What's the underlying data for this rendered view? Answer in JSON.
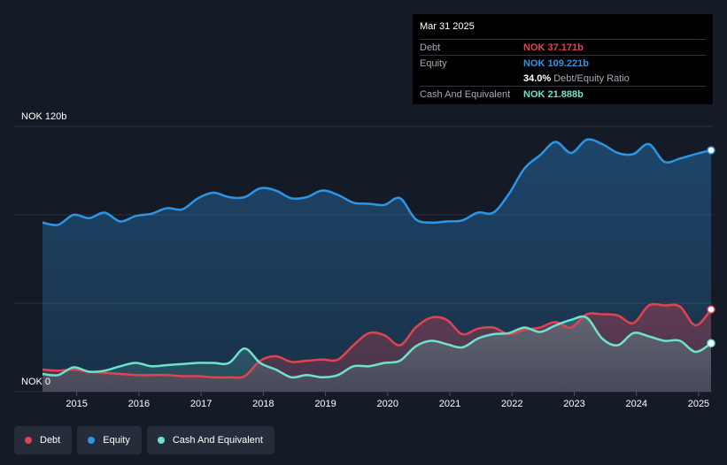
{
  "tooltip": {
    "date": "Mar 31 2025",
    "debt_label": "Debt",
    "debt_value": "NOK 37.171b",
    "equity_label": "Equity",
    "equity_value": "NOK 109.221b",
    "ratio_value": "34.0%",
    "ratio_label": "Debt/Equity Ratio",
    "cash_label": "Cash And Equivalent",
    "cash_value": "NOK 21.888b"
  },
  "colors": {
    "debt": "#e2434f",
    "equity": "#2e94e6",
    "cash": "#6fe2cd",
    "background": "#151b26"
  },
  "legend": [
    {
      "label": "Debt",
      "color": "#e2434f"
    },
    {
      "label": "Equity",
      "color": "#2e94e6"
    },
    {
      "label": "Cash And Equivalent",
      "color": "#6fe2cd"
    }
  ],
  "chart_data": {
    "type": "area",
    "title": "",
    "ylabel": "",
    "xlabel": "",
    "ylim": [
      0,
      120
    ],
    "y_top_label": "NOK 120b",
    "y_bottom_label": "NOK 0",
    "x_ticks": [
      "2015",
      "2016",
      "2017",
      "2018",
      "2019",
      "2020",
      "2021",
      "2022",
      "2023",
      "2024",
      "2025"
    ],
    "x_tick_values": [
      2015,
      2016,
      2017,
      2018,
      2019,
      2020,
      2021,
      2022,
      2023,
      2024,
      2025
    ],
    "xlim": [
      2014.45,
      2025.2
    ],
    "series": [
      {
        "name": "Equity",
        "x": [
          2014.45,
          2014.7,
          2014.95,
          2015.2,
          2015.45,
          2015.7,
          2015.95,
          2016.2,
          2016.45,
          2016.7,
          2016.95,
          2017.2,
          2017.45,
          2017.7,
          2017.95,
          2018.2,
          2018.45,
          2018.7,
          2018.95,
          2019.2,
          2019.45,
          2019.7,
          2019.95,
          2020.2,
          2020.45,
          2020.7,
          2020.95,
          2021.2,
          2021.45,
          2021.7,
          2021.95,
          2022.2,
          2022.45,
          2022.7,
          2022.95,
          2023.2,
          2023.45,
          2023.7,
          2023.95,
          2024.2,
          2024.45,
          2024.7,
          2024.95,
          2025.2
        ],
        "values": [
          76.5,
          75.5,
          80,
          78.5,
          81,
          77,
          79.5,
          80.5,
          83,
          82.5,
          87.5,
          90,
          88,
          88,
          92,
          91,
          87.5,
          88,
          91,
          89,
          85.5,
          85,
          84.5,
          87.5,
          78,
          76.5,
          77,
          77.5,
          81,
          81,
          89.5,
          101,
          107,
          113,
          108,
          114,
          112,
          108,
          107.5,
          112,
          104,
          105.5,
          107.5,
          109.221
        ]
      },
      {
        "name": "Debt",
        "x": [
          2014.45,
          2014.7,
          2014.95,
          2015.2,
          2015.45,
          2015.7,
          2015.95,
          2016.2,
          2016.45,
          2016.7,
          2016.95,
          2017.2,
          2017.45,
          2017.7,
          2017.95,
          2018.2,
          2018.45,
          2018.7,
          2018.95,
          2019.2,
          2019.45,
          2019.7,
          2019.95,
          2020.2,
          2020.45,
          2020.7,
          2020.95,
          2021.2,
          2021.45,
          2021.7,
          2021.95,
          2022.2,
          2022.45,
          2022.7,
          2022.95,
          2023.2,
          2023.45,
          2023.7,
          2023.95,
          2024.2,
          2024.45,
          2024.7,
          2024.95,
          2025.2
        ],
        "values": [
          10,
          9.5,
          10,
          9,
          8.5,
          8,
          7.5,
          7.5,
          7.5,
          7,
          7,
          6.5,
          6.5,
          7,
          14,
          16,
          13.5,
          14,
          14.5,
          14.5,
          21,
          26.5,
          25.5,
          21,
          29,
          33.5,
          32.5,
          26,
          28.5,
          29,
          26,
          28,
          29,
          31.5,
          29,
          35,
          35,
          34.5,
          31,
          39,
          39,
          38.5,
          30,
          37.171
        ]
      },
      {
        "name": "Cash And Equivalent",
        "x": [
          2014.45,
          2014.7,
          2014.95,
          2015.2,
          2015.45,
          2015.7,
          2015.95,
          2016.2,
          2016.45,
          2016.7,
          2016.95,
          2017.2,
          2017.45,
          2017.7,
          2017.95,
          2018.2,
          2018.45,
          2018.7,
          2018.95,
          2019.2,
          2019.45,
          2019.7,
          2019.95,
          2020.2,
          2020.45,
          2020.7,
          2020.95,
          2021.2,
          2021.45,
          2021.7,
          2021.95,
          2022.2,
          2022.45,
          2022.7,
          2022.95,
          2023.2,
          2023.45,
          2023.7,
          2023.95,
          2024.2,
          2024.45,
          2024.7,
          2024.95,
          2025.2
        ],
        "values": [
          8,
          7.5,
          11,
          9,
          9.5,
          11.5,
          13,
          11.5,
          12,
          12.5,
          13,
          13,
          13,
          19.5,
          13,
          10,
          6.5,
          7.5,
          6.5,
          7.5,
          11.5,
          11.5,
          13,
          14,
          20.5,
          23,
          21.5,
          20,
          24,
          26,
          26.5,
          29,
          27,
          30,
          32.5,
          33.5,
          24,
          21,
          26.5,
          25,
          23,
          23,
          18,
          21.888
        ]
      }
    ]
  }
}
